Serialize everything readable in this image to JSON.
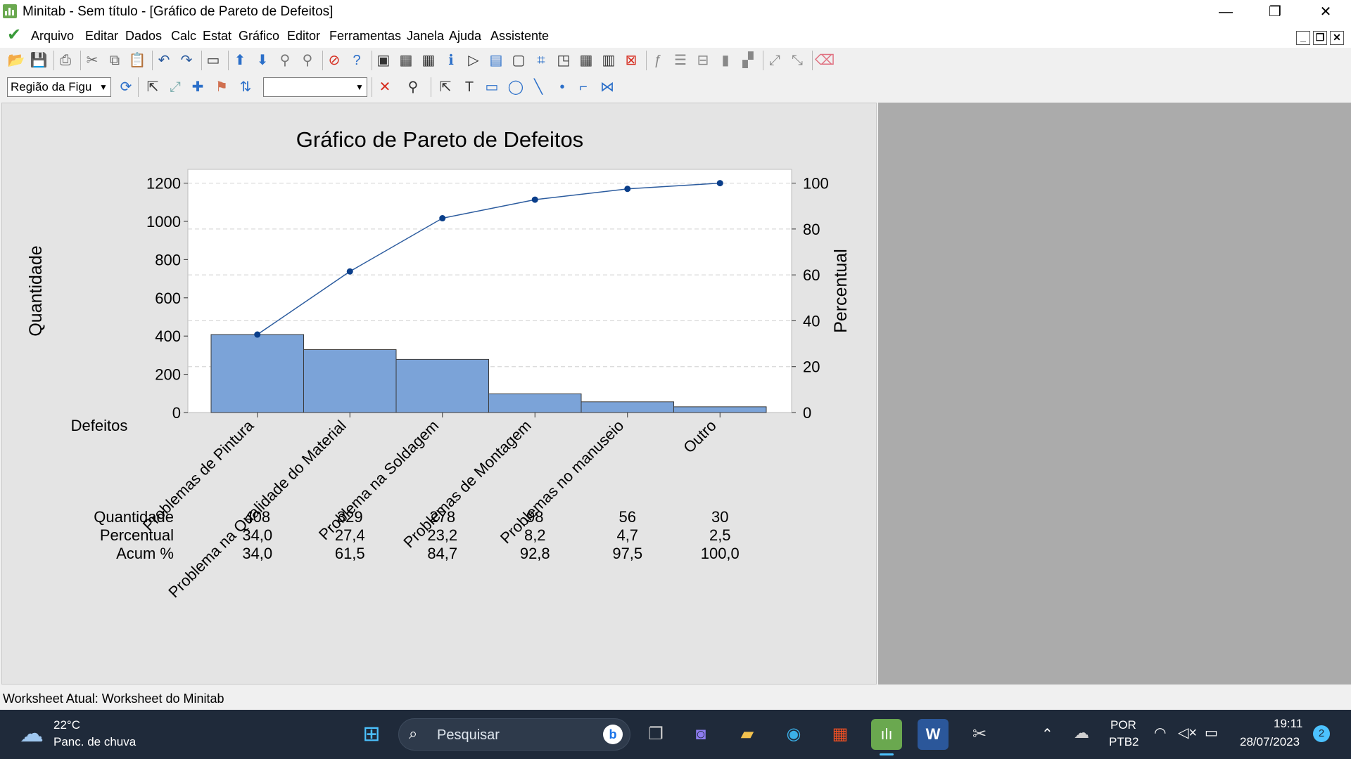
{
  "window": {
    "title": "Minitab - Sem título - [Gráfico de Pareto de Defeitos]",
    "controls": {
      "minimize": "—",
      "restore": "❐",
      "close": "✕"
    }
  },
  "menu": {
    "items": [
      "Arquivo",
      "Editar",
      "Dados",
      "Calc",
      "Estat",
      "Gráfico",
      "Editor",
      "Ferramentas",
      "Janela",
      "Ajuda",
      "Assistente"
    ]
  },
  "toolbar2": {
    "region_combo_value": "Região da Figu",
    "second_combo_value": ""
  },
  "status": {
    "text": "Worksheet Atual: Worksheet do Minitab"
  },
  "taskbar": {
    "weather_temp": "22°C",
    "weather_desc": "Panc. de chuva",
    "search_placeholder": "Pesquisar",
    "lang_top": "POR",
    "lang_bottom": "PTB2",
    "time": "19:11",
    "date": "28/07/2023",
    "notifications": "2"
  },
  "colors": {
    "bar_fill": "#7ba3d8",
    "bar_stroke": "#3a3a3a",
    "line": "#2b5b9e",
    "point": "#0a3e8a",
    "plot_bg": "#ffffff",
    "graph_bg": "#e4e4e4"
  },
  "chart_data": {
    "type": "bar",
    "title": "Gráfico de Pareto de Defeitos",
    "xlabel": "Defeitos",
    "ylabel": "Quantidade",
    "y2label": "Percentual",
    "ylim": [
      0,
      1272
    ],
    "y2lim": [
      0,
      106
    ],
    "yticks": [
      0,
      200,
      400,
      600,
      800,
      1000,
      1200
    ],
    "y2ticks": [
      0,
      20,
      40,
      60,
      80,
      100
    ],
    "categories": [
      "Problemas de Pintura",
      "Problema na Qualidade do Material",
      "Problema na Soldagem",
      "Problemas de Montagem",
      "Problemas no manuseio",
      "Outro"
    ],
    "values": [
      408,
      329,
      278,
      98,
      56,
      30
    ],
    "cumulative_percent": [
      34.0,
      61.5,
      84.7,
      92.8,
      97.5,
      100.0
    ],
    "table": {
      "row_labels": [
        "Quantidade",
        "Percentual",
        "Acum %"
      ],
      "rows": [
        [
          "408",
          "329",
          "278",
          "98",
          "56",
          "30"
        ],
        [
          "34,0",
          "27,4",
          "23,2",
          "8,2",
          "4,7",
          "2,5"
        ],
        [
          "34,0",
          "61,5",
          "84,7",
          "92,8",
          "97,5",
          "100,0"
        ]
      ]
    },
    "grid": true
  }
}
